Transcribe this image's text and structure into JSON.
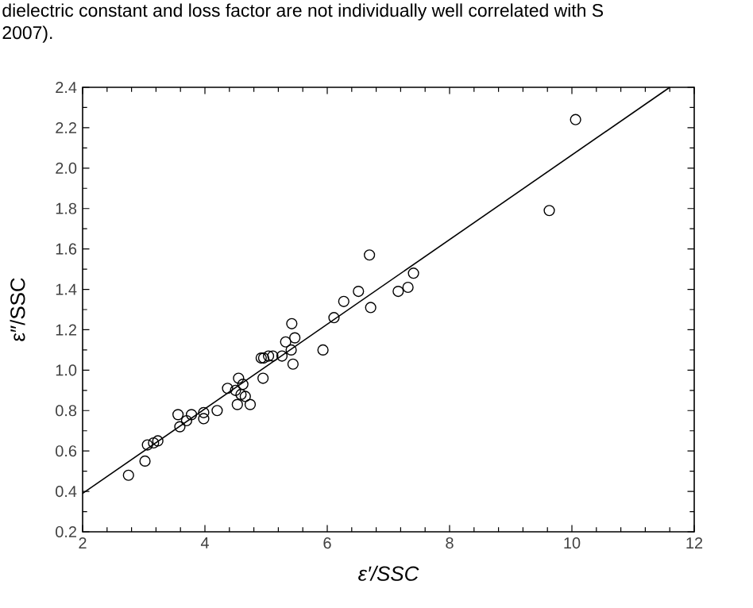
{
  "chart_data": {
    "type": "scatter",
    "xlabel": "ε′/SSC",
    "ylabel": "ε″/SSC",
    "annotations": [
      "dielectric constant and loss factor are not individually well correlated with S",
      "2007)."
    ],
    "xlim": [
      2,
      12
    ],
    "ylim": [
      0.2,
      2.4
    ],
    "xticks": [
      2,
      4,
      6,
      8,
      10,
      12
    ],
    "yticks": [
      0.2,
      0.4,
      0.6,
      0.8,
      {
        "value": 1.0,
        "label": "1.0"
      },
      1.2,
      1.4,
      1.6,
      1.8,
      {
        "value": 2.0,
        "label": "2.0"
      },
      2.2,
      2.4
    ],
    "series": [
      {
        "type": "scatter",
        "marker": "circle",
        "color": "#000000",
        "x": [
          2.75,
          3.02,
          3.06,
          3.16,
          3.23,
          3.56,
          3.59,
          3.7,
          3.78,
          3.98,
          3.98,
          4.2,
          4.37,
          4.5,
          4.53,
          4.55,
          4.62,
          4.59,
          4.66,
          4.74,
          4.95,
          4.92,
          4.96,
          5.04,
          5.11,
          5.26,
          5.32,
          5.41,
          5.42,
          5.47,
          5.44,
          5.93,
          6.11,
          6.27,
          6.51,
          6.71,
          6.69,
          7.41,
          7.32,
          7.16,
          10.06,
          9.63
        ],
        "values": [
          0.48,
          0.55,
          0.63,
          0.64,
          0.65,
          0.78,
          0.72,
          0.75,
          0.78,
          0.76,
          0.79,
          0.8,
          0.91,
          0.9,
          0.83,
          0.96,
          0.93,
          0.88,
          0.87,
          0.83,
          0.96,
          1.06,
          1.06,
          1.07,
          1.07,
          1.07,
          1.14,
          1.1,
          1.23,
          1.16,
          1.03,
          1.1,
          1.26,
          1.34,
          1.39,
          1.31,
          1.57,
          1.48,
          1.41,
          1.39,
          2.24,
          1.79
        ]
      },
      {
        "type": "line",
        "marker": "none",
        "line_style": "solid",
        "color": "#000000",
        "x": [
          2,
          11.6
        ],
        "values": [
          0.39,
          2.4
        ]
      }
    ]
  }
}
